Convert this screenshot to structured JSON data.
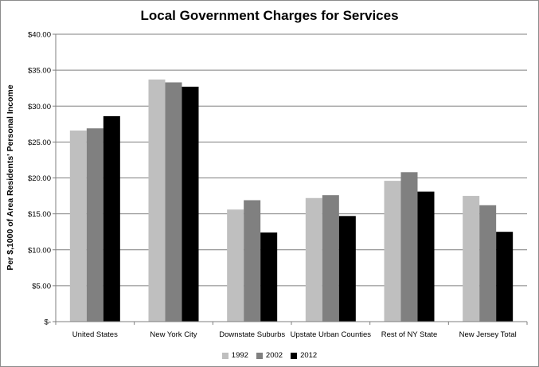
{
  "chart_data": {
    "type": "bar",
    "title": "Local Government Charges for Services",
    "xlabel": "",
    "ylabel": "Per $,1000 of Area Residents' Personal Income",
    "ylim": [
      0,
      40
    ],
    "yticks": [
      0,
      5,
      10,
      15,
      20,
      25,
      30,
      35,
      40
    ],
    "ytick_labels": [
      "$-",
      "$5.00",
      "$10.00",
      "$15.00",
      "$20.00",
      "$25.00",
      "$30.00",
      "$35.00",
      "$40.00"
    ],
    "grid": true,
    "legend_position": "bottom",
    "categories": [
      "United States",
      "New York City",
      "Downstate Suburbs",
      "Upstate Urban Counties",
      "Rest of NY State",
      "New Jersey Total"
    ],
    "series": [
      {
        "name": "1992",
        "color": "#bfbfbf",
        "values": [
          26.6,
          33.7,
          15.6,
          17.2,
          19.6,
          17.5
        ]
      },
      {
        "name": "2002",
        "color": "#808080",
        "values": [
          26.9,
          33.3,
          16.9,
          17.6,
          20.8,
          16.2
        ]
      },
      {
        "name": "2012",
        "color": "#000000",
        "values": [
          28.6,
          32.7,
          12.4,
          14.7,
          18.1,
          12.5
        ]
      }
    ]
  }
}
